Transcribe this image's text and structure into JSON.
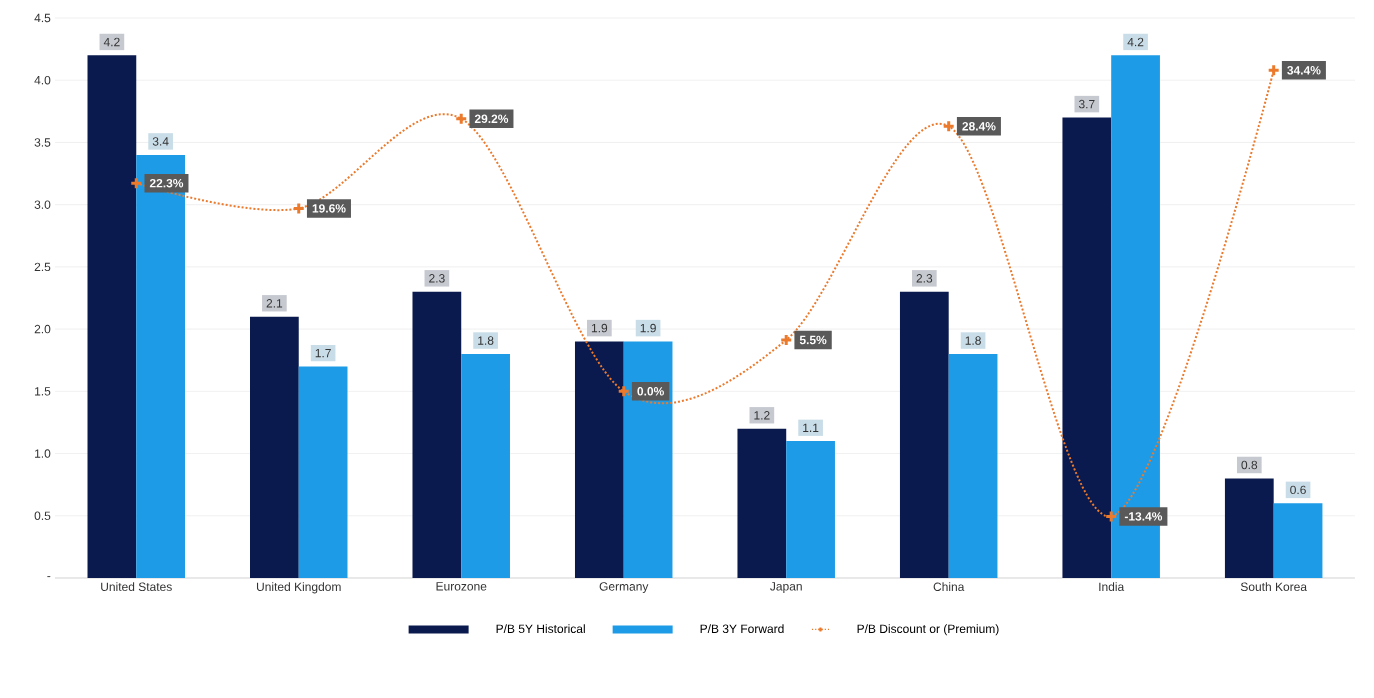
{
  "chart_data": {
    "type": "bar",
    "categories": [
      "United States",
      "United Kingdom",
      "Eurozone",
      "Germany",
      "Japan",
      "China",
      "India",
      "South Korea"
    ],
    "series": [
      {
        "name": "P/B 5Y Historical",
        "color": "#0b1a4e",
        "values": [
          4.2,
          2.1,
          2.3,
          1.9,
          1.2,
          2.3,
          3.7,
          0.8
        ],
        "value_labels": [
          "4.2",
          "2.1",
          "2.3",
          "1.9",
          "1.2",
          "2.3",
          "3.7",
          "0.8"
        ]
      },
      {
        "name": "P/B 3Y Forward",
        "color": "#1e9be6",
        "values": [
          3.4,
          1.7,
          1.8,
          1.9,
          1.1,
          1.8,
          4.2,
          0.6
        ],
        "value_labels": [
          "3.4",
          "1.7",
          "1.8",
          "1.9",
          "1.1",
          "1.8",
          "4.2",
          "0.6"
        ]
      },
      {
        "name": "P/B Discount or (Premium)",
        "type": "line",
        "axis": "y2",
        "color": "#ec7a2c",
        "marker": "cross",
        "line_style": "dotted",
        "values": [
          22.3,
          19.6,
          29.2,
          0.0,
          5.5,
          28.4,
          -13.4,
          34.4
        ],
        "value_labels": [
          "22.3%",
          "19.6%",
          "29.2%",
          "0.0%",
          "5.5%",
          "28.4%",
          "-13.4%",
          "34.4%"
        ]
      }
    ],
    "ylim": [
      0,
      4.5
    ],
    "yticks": [
      {
        "value": 0,
        "label": "-"
      },
      0.5,
      {
        "value": 1,
        "label": "1.0"
      },
      1.5,
      {
        "value": 2,
        "label": "2.0"
      },
      2.5,
      {
        "value": 3,
        "label": "3.0"
      },
      3.5,
      {
        "value": 4,
        "label": "4.0"
      },
      4.5
    ],
    "y2lim": [
      -20,
      40
    ],
    "tick_labels": "xy",
    "grid": "y",
    "legend": "bottom"
  }
}
